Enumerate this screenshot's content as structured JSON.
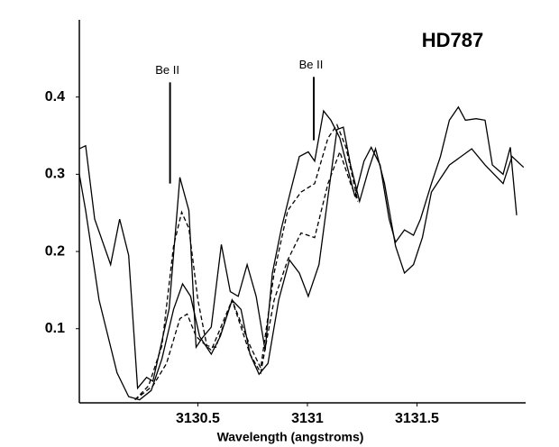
{
  "chart_data": {
    "type": "line",
    "title": "HD787",
    "x_label": "Wavelength (angstroms)",
    "xlim": [
      3129.959,
      3131.996
    ],
    "ylim": [
      0.004,
      0.5
    ],
    "xticks": [
      3130.5,
      3131,
      3131.5
    ],
    "yticks": [
      0.1,
      0.2,
      0.3,
      0.4
    ],
    "grid": false,
    "annotations": [
      {
        "text": "Be II",
        "x": 3130.373,
        "y_from": 0.288,
        "y_to": 0.419
      },
      {
        "text": "Be II",
        "x": 3131.029,
        "y_from": 0.344,
        "y_to": 0.426
      }
    ],
    "series": [
      {
        "color": "#000000",
        "dash": "none",
        "x": [
          3129.959,
          3129.988,
          3130.029,
          3130.102,
          3130.143,
          3130.184,
          3130.225,
          3130.266,
          3130.295,
          3130.369,
          3130.418,
          3130.459,
          3130.492,
          3130.52,
          3130.561,
          3130.607,
          3130.648,
          3130.684,
          3130.725,
          3130.766,
          3130.807,
          3130.84,
          3130.881,
          3130.922,
          3130.963,
          3131.004,
          3131.033,
          3131.074,
          3131.107,
          3131.148,
          3131.217,
          3131.258,
          3131.291,
          3131.332,
          3131.373,
          3131.402,
          3131.443,
          3131.484,
          3131.516,
          3131.566,
          3131.607,
          3131.648,
          3131.689,
          3131.721,
          3131.77,
          3131.811,
          3131.844,
          3131.893,
          3131.926,
          3131.955
        ],
        "values": [
          0.333,
          0.337,
          0.242,
          0.183,
          0.242,
          0.195,
          0.023,
          0.037,
          0.032,
          0.126,
          0.296,
          0.253,
          0.076,
          0.088,
          0.102,
          0.209,
          0.148,
          0.142,
          0.183,
          0.142,
          0.072,
          0.172,
          0.23,
          0.277,
          0.323,
          0.329,
          0.317,
          0.382,
          0.37,
          0.347,
          0.271,
          0.317,
          0.335,
          0.312,
          0.242,
          0.212,
          0.228,
          0.221,
          0.242,
          0.288,
          0.323,
          0.37,
          0.387,
          0.37,
          0.372,
          0.37,
          0.312,
          0.3,
          0.335,
          0.247
        ]
      },
      {
        "color": "#000000",
        "dash": "none",
        "x": [
          3129.959,
          3129.988,
          3130.049,
          3130.131,
          3130.184,
          3130.234,
          3130.287,
          3130.336,
          3130.389,
          3130.43,
          3130.467,
          3130.508,
          3130.561,
          3130.602,
          3130.656,
          3130.697,
          3130.738,
          3130.779,
          3130.82,
          3130.869,
          3130.918,
          3130.963,
          3131.004,
          3131.053,
          3131.094,
          3131.135,
          3131.164,
          3131.197,
          3131.238,
          3131.279,
          3131.311,
          3131.352,
          3131.402,
          3131.443,
          3131.484,
          3131.525,
          3131.566,
          3131.648,
          3131.75,
          3131.811,
          3131.893,
          3131.934,
          3131.987
        ],
        "values": [
          0.3,
          0.253,
          0.137,
          0.043,
          0.012,
          0.008,
          0.02,
          0.061,
          0.125,
          0.158,
          0.142,
          0.09,
          0.067,
          0.09,
          0.137,
          0.125,
          0.067,
          0.041,
          0.055,
          0.137,
          0.189,
          0.172,
          0.142,
          0.183,
          0.271,
          0.358,
          0.361,
          0.312,
          0.265,
          0.306,
          0.333,
          0.288,
          0.207,
          0.172,
          0.183,
          0.218,
          0.277,
          0.312,
          0.333,
          0.312,
          0.288,
          0.323,
          0.309
        ]
      },
      {
        "color": "#000000",
        "dash": "5,3",
        "x": [
          3130.213,
          3130.275,
          3130.336,
          3130.389,
          3130.426,
          3130.459,
          3130.5,
          3130.541,
          3130.582,
          3130.656,
          3130.738,
          3130.787,
          3130.848,
          3130.91,
          3130.971,
          3131.033,
          3131.094,
          3131.135,
          3131.176,
          3131.23
        ],
        "values": [
          0.008,
          0.026,
          0.078,
          0.207,
          0.251,
          0.23,
          0.137,
          0.078,
          0.076,
          0.137,
          0.078,
          0.049,
          0.172,
          0.253,
          0.277,
          0.288,
          0.347,
          0.364,
          0.335,
          0.265
        ]
      },
      {
        "color": "#000000",
        "dash": "5,3",
        "x": [
          3130.213,
          3130.295,
          3130.357,
          3130.418,
          3130.451,
          3130.492,
          3130.561,
          3130.656,
          3130.738,
          3130.787,
          3130.848,
          3130.91,
          3130.971,
          3131.033,
          3131.094,
          3131.148,
          3131.197,
          3131.23
        ],
        "values": [
          0.008,
          0.026,
          0.055,
          0.113,
          0.119,
          0.09,
          0.072,
          0.137,
          0.067,
          0.043,
          0.137,
          0.189,
          0.224,
          0.218,
          0.288,
          0.329,
          0.288,
          0.265
        ]
      }
    ]
  }
}
